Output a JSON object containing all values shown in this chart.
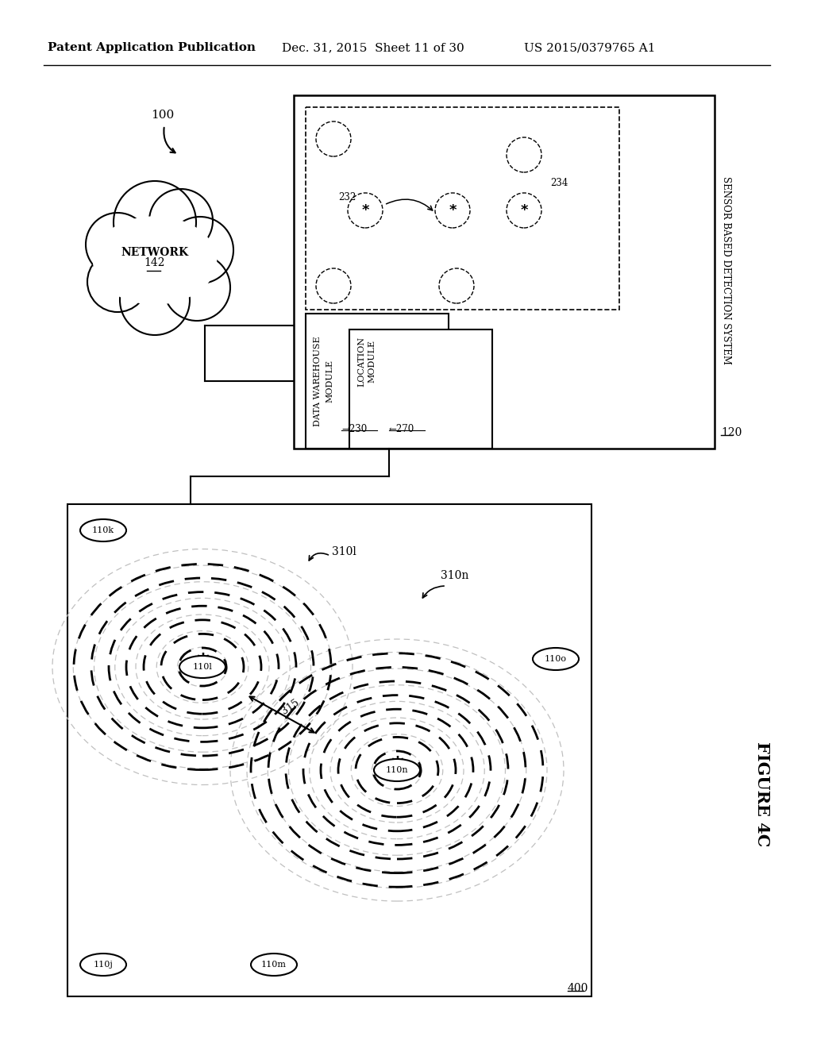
{
  "bg_color": "#ffffff",
  "header_text": "Patent Application Publication",
  "header_date": "Dec. 31, 2015  Sheet 11 of 30",
  "header_patent": "US 2015/0379765 A1",
  "figure_label": "FIGURE 4C",
  "label_100": "100",
  "label_120": "120",
  "label_142": "142",
  "label_230": "230",
  "label_270": "270",
  "label_232": "232",
  "label_234": "234",
  "label_400": "400",
  "label_315": "315",
  "label_310l": "310l",
  "label_310n": "310n",
  "sensor_based_text": "SENSOR BASED DETECTION SYSTEM",
  "data_warehouse_text1": "DATA WAREHOUSE",
  "data_warehouse_text2": "MODULE",
  "location_text1": "LOCATION",
  "location_text2": "MODULE",
  "network_text": "NETWORK"
}
